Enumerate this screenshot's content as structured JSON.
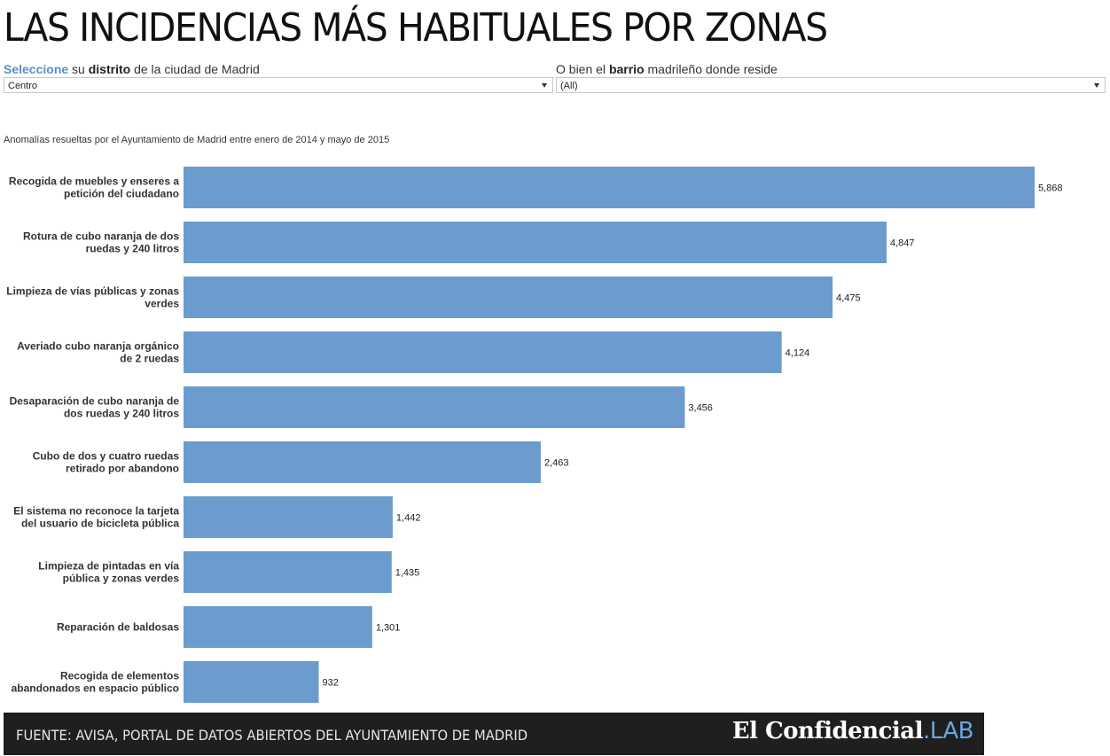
{
  "title": "LAS INCIDENCIAS MÁS HABITUALES POR ZONAS",
  "filters": {
    "distrito": {
      "label_accent": "Seleccione",
      "label_1": "su",
      "label_bold": "distrito",
      "label_2": "de la ciudad de Madrid",
      "value": "Centro"
    },
    "barrio": {
      "label_1": "O bien el",
      "label_bold": "barrio",
      "label_2": "madrileño donde reside",
      "value": "(All)"
    }
  },
  "colors": {
    "bar": "#6b9ccd",
    "accent": "#5b8fc7",
    "footer_bg": "#1f1f1f",
    "logo_accent": "#6aa6e0"
  },
  "chart_data": {
    "type": "bar",
    "orientation": "horizontal",
    "subtitle": "Anomalías resueltas por el Ayuntamiento de Madrid entre enero de 2014 y mayo de 2015",
    "categories": [
      [
        "Recogida de muebles y enseres a",
        "petición del ciudadano"
      ],
      [
        "Rotura de cubo naranja de dos",
        "ruedas y 240 litros"
      ],
      [
        "Limpieza de vías públicas y zonas",
        "verdes"
      ],
      [
        "Averiado cubo naranja orgánico",
        "de 2 ruedas"
      ],
      [
        "Desaparación de cubo naranja de",
        "dos ruedas y 240 litros"
      ],
      [
        "Cubo de dos y cuatro ruedas",
        "retirado por abandono"
      ],
      [
        "El sistema no reconoce la tarjeta",
        "del usuario de bicicleta pública"
      ],
      [
        "Limpieza de pintadas en vía",
        "pública y zonas verdes"
      ],
      [
        "Reparación de baldosas"
      ],
      [
        "Recogida de elementos",
        "abandonados en espacio público"
      ]
    ],
    "values": [
      5868,
      4847,
      4475,
      4124,
      3456,
      2463,
      1442,
      1435,
      1301,
      932
    ],
    "value_labels": [
      "5,868",
      "4,847",
      "4,475",
      "4,124",
      "3,456",
      "2,463",
      "1,442",
      "1,435",
      "1,301",
      "932"
    ],
    "xlim": [
      0,
      5868
    ],
    "grid": false,
    "axis_visible": false
  },
  "footer": {
    "source": "FUENTE: AVISA, PORTAL DE DATOS ABIERTOS DEL AYUNTAMIENTO DE MADRID",
    "logo_main": "El Confidencial",
    "logo_dot": ".",
    "logo_lab": "LAB"
  }
}
